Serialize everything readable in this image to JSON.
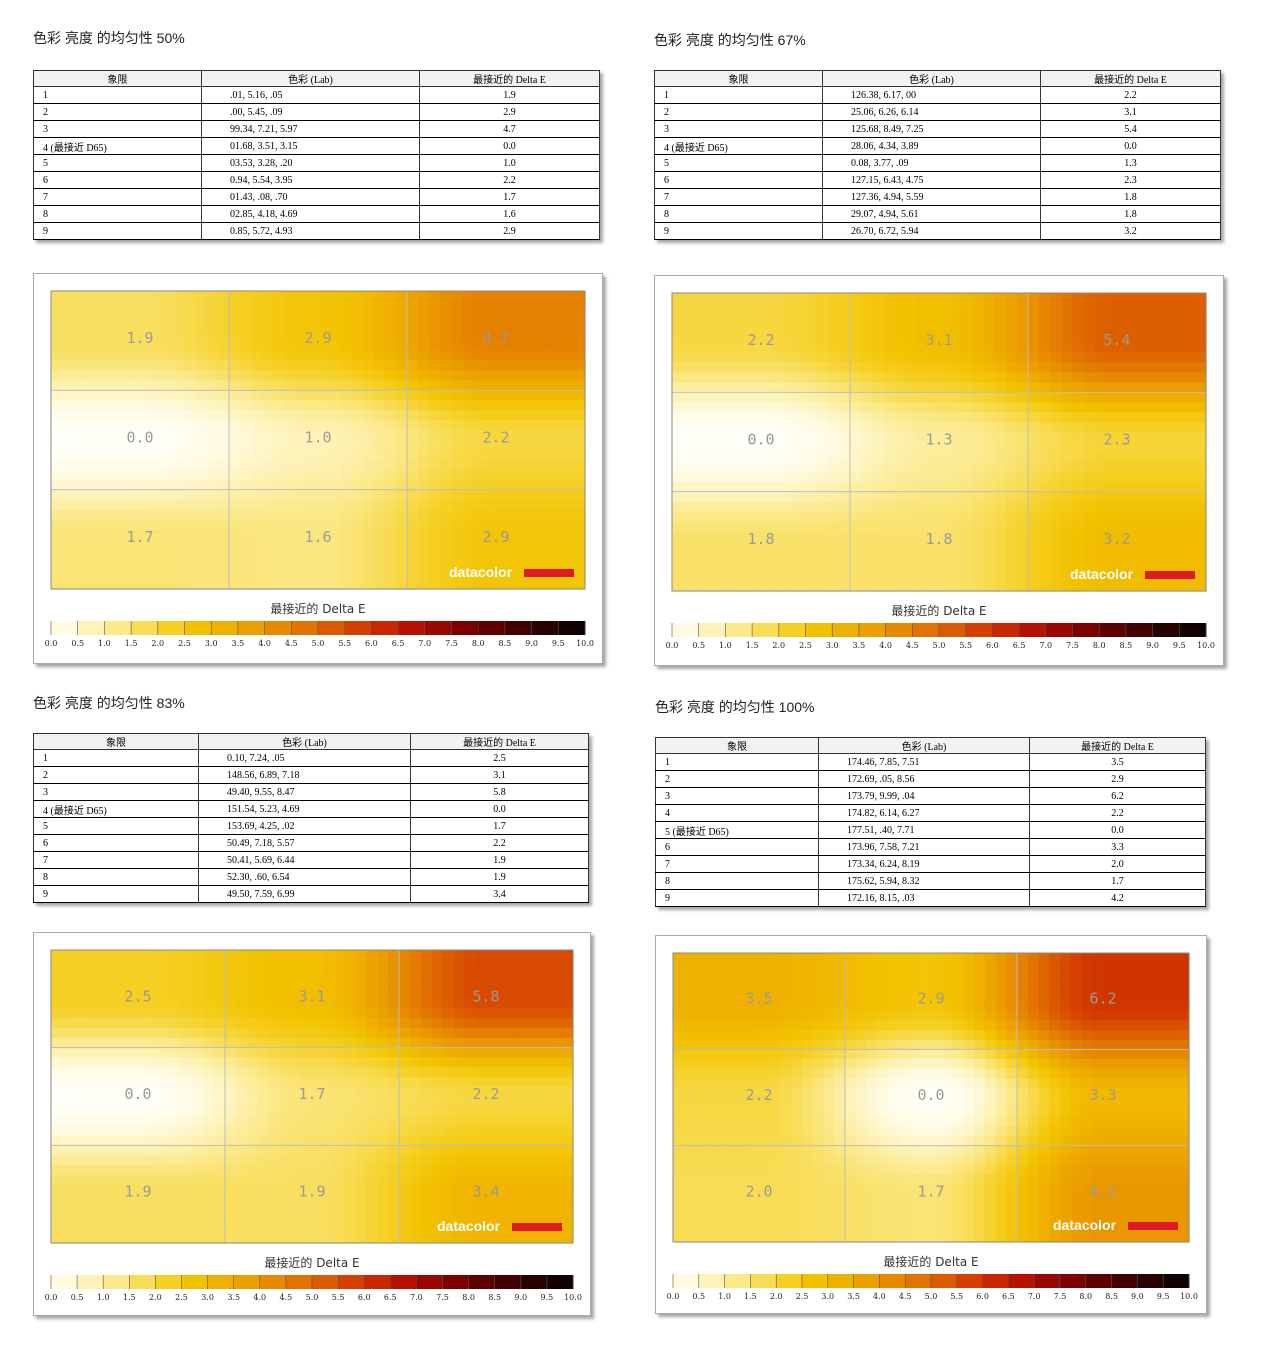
{
  "colors": {
    "scale": [
      "#fffff8",
      "#fffae0",
      "#fdf3b8",
      "#fbe98a",
      "#f8dc55",
      "#f5cf22",
      "#f2c200",
      "#efb100",
      "#eb9f00",
      "#e78a00",
      "#e27300",
      "#dc5a00",
      "#d43f00",
      "#c92700",
      "#b51300",
      "#9a0600",
      "#7c0000",
      "#5e0000",
      "#420000",
      "#280000",
      "#120000"
    ],
    "logo_bar": "#e01a22"
  },
  "charts": [
    {
      "title": "色彩 亮度 的均匀性 50%",
      "headers": [
        "象限",
        "色彩 (Lab)",
        "最接近的 Delta E"
      ],
      "rows": [
        {
          "q": "1",
          "lab": ".01,    5.16,    .05",
          "de": "1.9"
        },
        {
          "q": "2",
          "lab": ".00,    5.45,    .09",
          "de": "2.9"
        },
        {
          "q": "3",
          "lab": "99.34,    7.21,    5.97",
          "de": "4.7"
        },
        {
          "q": "4 (最接近 D65)",
          "lab": "01.68,    3.51,    3.15",
          "de": "0.0"
        },
        {
          "q": "5",
          "lab": "03.53,    3.28,    .20",
          "de": "1.0"
        },
        {
          "q": "6",
          "lab": "0.94,    5.54,    3.95",
          "de": "2.2"
        },
        {
          "q": "7",
          "lab": "01.43,    .08,    .70",
          "de": "1.7"
        },
        {
          "q": "8",
          "lab": "02.85,    4.18,    4.69",
          "de": "1.6"
        },
        {
          "q": "9",
          "lab": "0.85,    5.72,    4.93",
          "de": "2.9"
        }
      ],
      "grid_labels": [
        "1.9",
        "2.9",
        "4.7",
        "0.0",
        "1.0",
        "2.2",
        "1.7",
        "1.6",
        "2.9"
      ],
      "legend_title": "最接近的 Delta E",
      "logo": "datacolor"
    },
    {
      "title": "色彩 亮度 的均匀性 67%",
      "headers": [
        "象限",
        "色彩 (Lab)",
        "最接近的 Delta E"
      ],
      "rows": [
        {
          "q": "1",
          "lab": "126.38,    6.17,    00",
          "de": "2.2"
        },
        {
          "q": "2",
          "lab": "25.06,    6.26,    6.14",
          "de": "3.1"
        },
        {
          "q": "3",
          "lab": "125.68,    8.49,    7.25",
          "de": "5.4"
        },
        {
          "q": "4 (最接近 D65)",
          "lab": "28.06,    4.34,    3.89",
          "de": "0.0"
        },
        {
          "q": "5",
          "lab": "0.08,    3.77,    .09",
          "de": "1.3"
        },
        {
          "q": "6",
          "lab": "127.15,    6.43,    4.75",
          "de": "2.3"
        },
        {
          "q": "7",
          "lab": "127.36,    4.94,    5.59",
          "de": "1.8"
        },
        {
          "q": "8",
          "lab": "29.07,    4.94,    5.61",
          "de": "1.8"
        },
        {
          "q": "9",
          "lab": "26.70,    6.72,    5.94",
          "de": "3.2"
        }
      ],
      "grid_labels": [
        "2.2",
        "3.1",
        "5.4",
        "0.0",
        "1.3",
        "2.3",
        "1.8",
        "1.8",
        "3.2"
      ],
      "legend_title": "最接近的 Delta E",
      "logo": "datacolor"
    },
    {
      "title": "色彩 亮度 的均匀性 83%",
      "headers": [
        "象限",
        "色彩 (Lab)",
        "最接近的 Delta E"
      ],
      "rows": [
        {
          "q": "1",
          "lab": "0.10,    7.24,    .05",
          "de": "2.5"
        },
        {
          "q": "2",
          "lab": "148.56,    6.89,    7.18",
          "de": "3.1"
        },
        {
          "q": "3",
          "lab": "49.40,    9.55,    8.47",
          "de": "5.8"
        },
        {
          "q": "4 (最接近 D65)",
          "lab": "151.54,    5.23,    4.69",
          "de": "0.0"
        },
        {
          "q": "5",
          "lab": "153.69,    4.25,    .02",
          "de": "1.7"
        },
        {
          "q": "6",
          "lab": "50.49,    7.18,    5.57",
          "de": "2.2"
        },
        {
          "q": "7",
          "lab": "50.41,    5.69,    6.44",
          "de": "1.9"
        },
        {
          "q": "8",
          "lab": "52.30,    .60,    6.54",
          "de": "1.9"
        },
        {
          "q": "9",
          "lab": "49.50,    7.59,    6.99",
          "de": "3.4"
        }
      ],
      "grid_labels": [
        "2.5",
        "3.1",
        "5.8",
        "0.0",
        "1.7",
        "2.2",
        "1.9",
        "1.9",
        "3.4"
      ],
      "legend_title": "最接近的 Delta E",
      "logo": "datacolor"
    },
    {
      "title": "色彩 亮度 的均匀性 100%",
      "headers": [
        "象限",
        "色彩 (Lab)",
        "最接近的 Delta E"
      ],
      "rows": [
        {
          "q": "1",
          "lab": "174.46,    7.85,    7.51",
          "de": "3.5"
        },
        {
          "q": "2",
          "lab": "172.69,    .05,    8.56",
          "de": "2.9"
        },
        {
          "q": "3",
          "lab": "173.79,    9.99,    .04",
          "de": "6.2"
        },
        {
          "q": "4",
          "lab": "174.82,    6.14,    6.27",
          "de": "2.2"
        },
        {
          "q": "5 (最接近 D65)",
          "lab": "177.51,    .40,    7.71",
          "de": "0.0"
        },
        {
          "q": "6",
          "lab": "173.96,    7.58,    7.21",
          "de": "3.3"
        },
        {
          "q": "7",
          "lab": "173.34,    6.24,    8.19",
          "de": "2.0"
        },
        {
          "q": "8",
          "lab": "175.62,    5.94,    8.32",
          "de": "1.7"
        },
        {
          "q": "9",
          "lab": "172.16,    8.15,    .03",
          "de": "4.2"
        }
      ],
      "grid_labels": [
        "3.5",
        "2.9",
        "6.2",
        "2.2",
        "0.0",
        "3.3",
        "2.0",
        "1.7",
        "4.2"
      ],
      "legend_title": "最接近的 Delta E",
      "logo": "datacolor"
    }
  ],
  "chart_data": [
    {
      "type": "heatmap",
      "title": "色彩 亮度 的均匀性 50%",
      "rows": 3,
      "cols": 3,
      "values": [
        [
          1.9,
          2.9,
          4.7
        ],
        [
          0.0,
          1.0,
          2.2
        ],
        [
          1.7,
          1.6,
          2.9
        ]
      ],
      "colorbar_label": "最接近的 Delta E",
      "colorbar_range": [
        0,
        10
      ],
      "colorbar_ticks": [
        "0.0",
        "0.5",
        "1.0",
        "1.5",
        "2.0",
        "2.5",
        "3.0",
        "3.5",
        "4.0",
        "4.5",
        "5.0",
        "5.5",
        "6.0",
        "6.5",
        "7.0",
        "7.5",
        "8.0",
        "8.5",
        "9.0",
        "9.5",
        "10.0"
      ]
    },
    {
      "type": "heatmap",
      "title": "色彩 亮度 的均匀性 67%",
      "rows": 3,
      "cols": 3,
      "values": [
        [
          2.2,
          3.1,
          5.4
        ],
        [
          0.0,
          1.3,
          2.3
        ],
        [
          1.8,
          1.8,
          3.2
        ]
      ],
      "colorbar_label": "最接近的 Delta E",
      "colorbar_range": [
        0,
        10
      ],
      "colorbar_ticks": [
        "0.0",
        "0.5",
        "1.0",
        "1.5",
        "2.0",
        "2.5",
        "3.0",
        "3.5",
        "4.0",
        "4.5",
        "5.0",
        "5.5",
        "6.0",
        "6.5",
        "7.0",
        "7.5",
        "8.0",
        "8.5",
        "9.0",
        "9.5",
        "10.0"
      ]
    },
    {
      "type": "heatmap",
      "title": "色彩 亮度 的均匀性 83%",
      "rows": 3,
      "cols": 3,
      "values": [
        [
          2.5,
          3.1,
          5.8
        ],
        [
          0.0,
          1.7,
          2.2
        ],
        [
          1.9,
          1.9,
          3.4
        ]
      ],
      "colorbar_label": "最接近的 Delta E",
      "colorbar_range": [
        0,
        10
      ],
      "colorbar_ticks": [
        "0.0",
        "0.5",
        "1.0",
        "1.5",
        "2.0",
        "2.5",
        "3.0",
        "3.5",
        "4.0",
        "4.5",
        "5.0",
        "5.5",
        "6.0",
        "6.5",
        "7.0",
        "7.5",
        "8.0",
        "8.5",
        "9.0",
        "9.5",
        "10.0"
      ]
    },
    {
      "type": "heatmap",
      "title": "色彩 亮度 的均匀性 100%",
      "rows": 3,
      "cols": 3,
      "values": [
        [
          3.5,
          2.9,
          6.2
        ],
        [
          2.2,
          0.0,
          3.3
        ],
        [
          2.0,
          1.7,
          4.2
        ]
      ],
      "colorbar_label": "最接近的 Delta E",
      "colorbar_range": [
        0,
        10
      ],
      "colorbar_ticks": [
        "0.0",
        "0.5",
        "1.0",
        "1.5",
        "2.0",
        "2.5",
        "3.0",
        "3.5",
        "4.0",
        "4.5",
        "5.0",
        "5.5",
        "6.0",
        "6.5",
        "7.0",
        "7.5",
        "8.0",
        "8.5",
        "9.0",
        "9.5",
        "10.0"
      ]
    }
  ]
}
